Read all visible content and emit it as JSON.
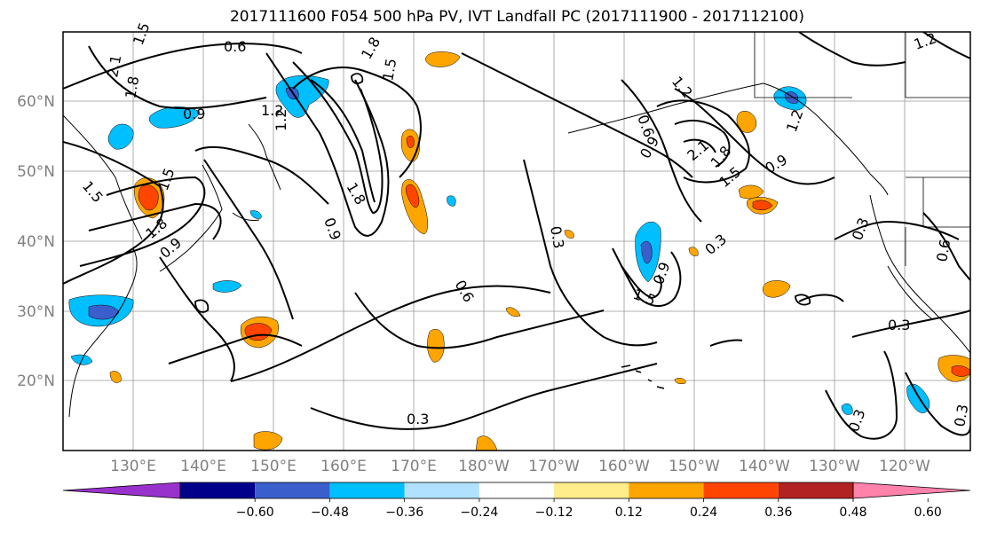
{
  "title": "2017111600 F054 500 hPa PV, IVT Landfall PC (2017111900 - 2017112100)",
  "map": {
    "lat_labels": [
      "60°N",
      "50°N",
      "40°N",
      "30°N",
      "20°N"
    ],
    "lon_labels": [
      "130°E",
      "140°E",
      "150°E",
      "160°E",
      "170°E",
      "180°W",
      "170°W",
      "160°W",
      "150°W",
      "140°W",
      "130°W",
      "120°W"
    ],
    "contour_labels": [
      "0.6",
      "1.5",
      "1.8",
      "2.1",
      "1.8",
      "0.9",
      "1.2",
      "1.5",
      "1.8",
      "1.5",
      "1.2",
      "0.9",
      "1.5",
      "1.8",
      "0.9",
      "0.6",
      "0.3",
      "0.6",
      "0.9",
      "1.2",
      "1.8",
      "2.1",
      "1.5",
      "0.9",
      "1.2",
      "1.2",
      "0.3",
      "0.3",
      "0.3",
      "0.6",
      "0.3",
      "1.5",
      "0.9",
      "0.3",
      "0.3"
    ],
    "colors": {
      "contour": "#000000",
      "coastline": "#000000",
      "grid": "#999999"
    }
  },
  "colorbar": {
    "colors": [
      "#9932cc",
      "#00008b",
      "#3a5fcd",
      "#00bfff",
      "#b0e2ff",
      "#ffffff",
      "#ffec8b",
      "#ffa500",
      "#ff4500",
      "#b22222",
      "#ff82ab"
    ],
    "tick_labels": [
      "−0.60",
      "−0.48",
      "−0.36",
      "−0.24",
      "−0.12",
      "0.12",
      "0.24",
      "0.36",
      "0.48",
      "0.60"
    ]
  }
}
